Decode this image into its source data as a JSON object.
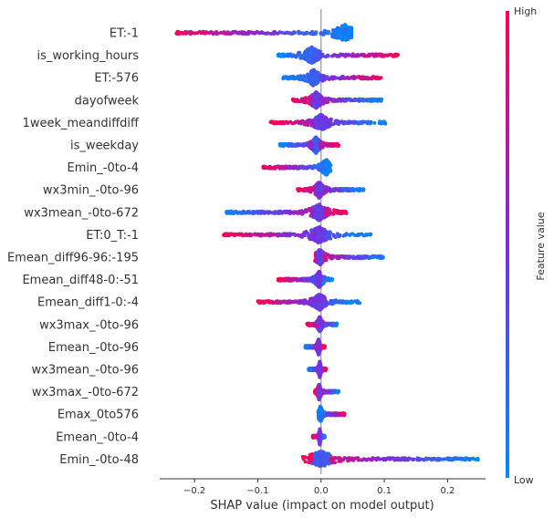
{
  "chart_data": {
    "type": "scatter",
    "subtype": "shap-beeswarm-summary",
    "xlabel": "SHAP value (impact on model output)",
    "xlim": [
      -0.255,
      0.26
    ],
    "xticks": [
      -0.2,
      -0.1,
      0.0,
      0.1,
      0.2
    ],
    "xtick_labels": [
      "−0.2",
      "−0.1",
      "0.0",
      "0.1",
      "0.2"
    ],
    "zero_line": 0,
    "colorbar": {
      "label": "Feature value",
      "high_label": "High",
      "low_label": "Low",
      "low_color": "#008bfb",
      "high_color": "#ff0052"
    },
    "features": [
      {
        "name": "ET:-1",
        "min": -0.23,
        "max": 0.048,
        "low_side": "right",
        "peak": 0.038,
        "peak_color": "blue",
        "outliers": []
      },
      {
        "name": "is_working_hours",
        "min": -0.068,
        "max": 0.123,
        "low_side": "left",
        "peak": -0.015,
        "peak_color": "blue",
        "outliers": []
      },
      {
        "name": "ET:-576",
        "min": -0.06,
        "max": 0.095,
        "low_side": "left",
        "peak": -0.012,
        "peak_color": "blue",
        "outliers": []
      },
      {
        "name": "dayofweek",
        "min": -0.045,
        "max": 0.097,
        "low_side": "right",
        "peak": -0.008,
        "peak_color": "purple",
        "outliers": []
      },
      {
        "name": "1week_meandiffdiff",
        "min": -0.08,
        "max": 0.102,
        "low_side": "right",
        "peak": 0.0,
        "peak_color": "purple",
        "outliers": []
      },
      {
        "name": "is_weekday",
        "min": -0.065,
        "max": 0.028,
        "low_side": "left",
        "peak": -0.008,
        "peak_color": "blue",
        "outliers": []
      },
      {
        "name": "Emin_-0to-4",
        "min": -0.093,
        "max": 0.015,
        "low_side": "right",
        "peak": 0.008,
        "peak_color": "blue",
        "outliers": []
      },
      {
        "name": "wx3min_-0to-96",
        "min": -0.038,
        "max": 0.068,
        "low_side": "right",
        "peak": -0.003,
        "peak_color": "purple",
        "outliers": []
      },
      {
        "name": "wx3mean_-0to-672",
        "min": -0.152,
        "max": 0.04,
        "low_side": "left",
        "peak": -0.003,
        "peak_color": "purple",
        "outliers": [
          -0.14,
          -0.128,
          -0.1,
          -0.085,
          -0.075,
          -0.05
        ]
      },
      {
        "name": "ET:0_T:-1",
        "min": -0.155,
        "max": 0.08,
        "low_side": "right",
        "peak": -0.003,
        "peak_color": "purple",
        "outliers": [
          -0.15,
          -0.13,
          -0.12,
          -0.112
        ]
      },
      {
        "name": "Emean_diff96-96:-195",
        "min": -0.01,
        "max": 0.1,
        "low_side": "right",
        "peak": -0.002,
        "peak_color": "purple",
        "outliers": []
      },
      {
        "name": "Emean_diff48-0:-51",
        "min": -0.068,
        "max": 0.018,
        "low_side": "right",
        "peak": -0.003,
        "peak_color": "purple",
        "outliers": []
      },
      {
        "name": "Emean_diff1-0:-4",
        "min": -0.1,
        "max": 0.062,
        "low_side": "right",
        "peak": -0.002,
        "peak_color": "purple",
        "outliers": [
          -0.098,
          -0.092
        ]
      },
      {
        "name": "wx3max_-0to-96",
        "min": -0.022,
        "max": 0.026,
        "low_side": "right",
        "peak": -0.002,
        "peak_color": "purple",
        "outliers": []
      },
      {
        "name": "Emean_-0to-96",
        "min": -0.025,
        "max": 0.006,
        "low_side": "left",
        "peak": -0.004,
        "peak_color": "purple",
        "outliers": []
      },
      {
        "name": "wx3mean_-0to-96",
        "min": -0.02,
        "max": 0.008,
        "low_side": "left",
        "peak": -0.002,
        "peak_color": "purple",
        "outliers": []
      },
      {
        "name": "wx3max_-0to-672",
        "min": -0.01,
        "max": 0.028,
        "low_side": "right",
        "peak": -0.003,
        "peak_color": "purple",
        "outliers": []
      },
      {
        "name": "Emax_0to576",
        "min": -0.005,
        "max": 0.038,
        "low_side": "left",
        "peak": -0.001,
        "peak_color": "blue",
        "outliers": []
      },
      {
        "name": "Emean_-0to-4",
        "min": -0.013,
        "max": 0.006,
        "low_side": "right",
        "peak": -0.002,
        "peak_color": "purple",
        "outliers": []
      },
      {
        "name": "Emin_-0to-48",
        "min": -0.03,
        "max": 0.25,
        "low_side": "right",
        "peak": 0.0,
        "peak_color": "blue",
        "outliers": [
          0.11,
          0.118,
          0.128,
          0.2,
          0.208,
          0.22,
          0.23,
          0.24,
          0.248
        ]
      }
    ]
  }
}
